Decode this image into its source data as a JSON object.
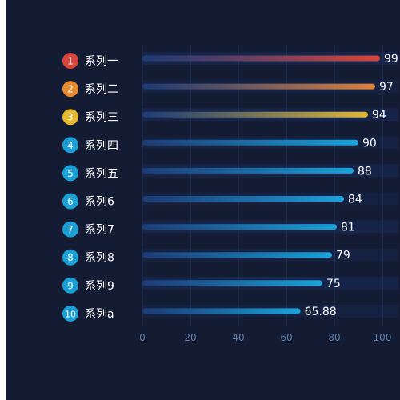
{
  "colors": {
    "background": "#131c33",
    "rank_top": [
      "#d8453a",
      "#e88a2e",
      "#e6b92e"
    ],
    "rank_default": "#1a9fd6",
    "bar_start": "#1d3f7e",
    "bar_ends": [
      "#d8453a",
      "#e0813b",
      "#e3bb33"
    ],
    "bar_default_end": "#19a4dc",
    "track": "#16264a",
    "axis_text": "#5f7eaa",
    "grid": "#2a3c62",
    "label_text": "#ffffff"
  },
  "chart_data": {
    "type": "bar",
    "orientation": "horizontal",
    "categories": [
      "系列一",
      "系列二",
      "系列三",
      "系列四",
      "系列五",
      "系列6",
      "系列7",
      "系列8",
      "系列9",
      "系列a"
    ],
    "ranks": [
      "1",
      "2",
      "3",
      "4",
      "5",
      "6",
      "7",
      "8",
      "9",
      "10"
    ],
    "values": [
      99,
      97,
      94,
      90,
      88,
      84,
      81,
      79,
      75,
      65.88
    ],
    "value_labels": [
      "99",
      "97",
      "94",
      "90",
      "88",
      "84",
      "81",
      "79",
      "75",
      "65.88"
    ],
    "xlim": [
      0,
      100
    ],
    "xticks": [
      "0",
      "20",
      "40",
      "60",
      "80",
      "100"
    ],
    "title": "",
    "xlabel": "",
    "ylabel": "",
    "grid": true,
    "legend": false
  }
}
